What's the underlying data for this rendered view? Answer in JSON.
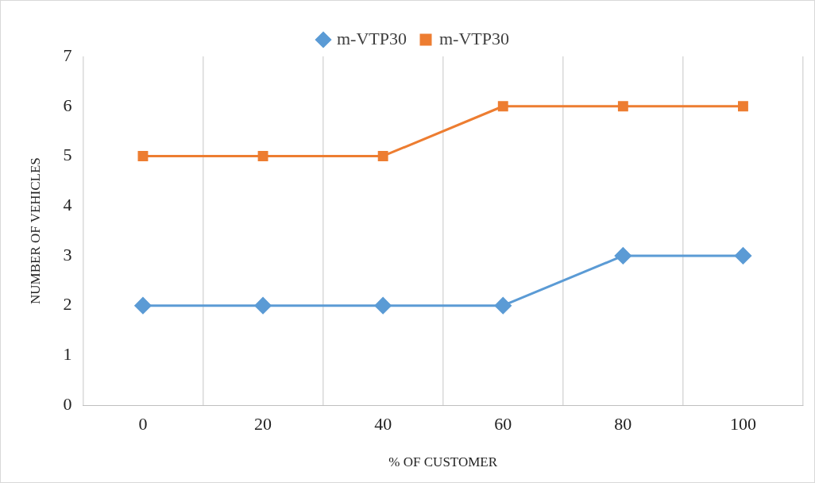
{
  "chart_data": {
    "type": "line",
    "xlabel": "% OF CUSTOMER",
    "ylabel": "NUMBER OF VEHICLES",
    "categories": [
      "0",
      "20",
      "40",
      "60",
      "80",
      "100"
    ],
    "series": [
      {
        "name": "m-VTP30",
        "color": "#5b9bd5",
        "marker": "diamond",
        "values": [
          2,
          2,
          2,
          2,
          3,
          3
        ]
      },
      {
        "name": "m-VTP30",
        "color": "#ed7d31",
        "marker": "square",
        "values": [
          5,
          5,
          5,
          6,
          6,
          6
        ]
      }
    ],
    "ylim": [
      0,
      7
    ],
    "yticks": [
      0,
      1,
      2,
      3,
      4,
      5,
      6,
      7
    ],
    "grid": "x",
    "legend": "top",
    "line_style": "solid"
  }
}
